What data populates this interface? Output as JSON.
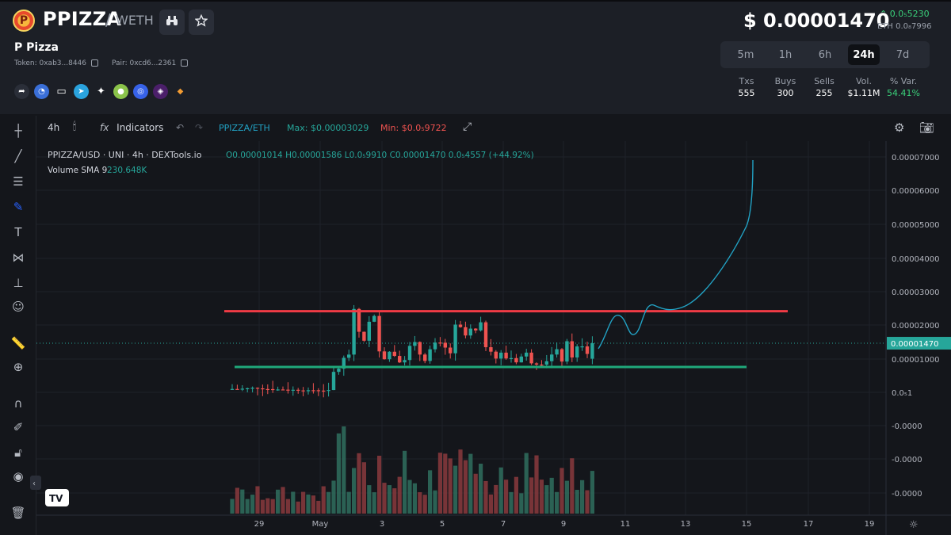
{
  "header": {
    "logo_letter": "P",
    "pair_base": "PPIZZA",
    "pair_sep": "/",
    "pair_quote": "WETH",
    "token_name": "P Pizza",
    "token_addr": "Token: 0xab3...8446",
    "pair_addr": "Pair: 0xcd6...2361",
    "price": "$ 0.00001470",
    "price_change": "0.0₅5230",
    "price_eth": "ETH 0.0₈7996",
    "timeframes": [
      "5m",
      "1h",
      "6h",
      "24h",
      "7d"
    ],
    "active_timeframe": "24h",
    "stats": {
      "txs_label": "Txs",
      "txs": "555",
      "buys_label": "Buys",
      "buys": "300",
      "sells_label": "Sells",
      "sells": "255",
      "vol_label": "Vol.",
      "vol": "$1.11M",
      "var_label": "% Var.",
      "var": "54.41%"
    },
    "social_icons": [
      "share-icon",
      "chart-icon",
      "monitor-icon",
      "telegram-icon",
      "twitter-icon",
      "coingecko-icon",
      "cmc-icon",
      "metamask-swap-icon",
      "fox-icon"
    ]
  },
  "chart_toolbar": {
    "interval": "4h",
    "indicators": "Indicators",
    "pair_label": "PPIZZA/ETH",
    "max_label": "Max: $0.00003029",
    "min_label": "Min: $0.0₅9722"
  },
  "legend": {
    "symbol": "PPIZZA/USD · UNI · 4h · DEXTools.io",
    "ohlc": "O0.00001014 H0.00001586 L0.0₅9910 C0.00001470 0.0₅4557 (+44.92%)",
    "volume_label": "Volume SMA 9",
    "volume_value": "230.648K"
  },
  "colors": {
    "up": "#26a69a",
    "down": "#ef5350",
    "resistance_line": "#ef3b45",
    "support_line": "#1fa87a",
    "drawing_curve": "#22a2c4",
    "price_tag": "#26a69a"
  },
  "chart_data": {
    "type": "candlestick",
    "x_ticks": [
      "29",
      "May",
      "3",
      "5",
      "7",
      "9",
      "11",
      "13",
      "15",
      "17",
      "19"
    ],
    "y_ticks": [
      "0.00007000",
      "0.00006000",
      "0.00005000",
      "0.00004000",
      "0.00003000",
      "0.00002000",
      "0.00001000",
      "0.0₅1",
      "-0.0000",
      "-0.0000",
      "-0.0000"
    ],
    "last_price_label": "0.00001470",
    "ylim": [
      0,
      7e-05
    ],
    "annotations": [
      {
        "kind": "horizontal",
        "color": "resistance",
        "y": 2.42e-05,
        "from": "May 1",
        "to": "May 16"
      },
      {
        "kind": "horizontal",
        "color": "support",
        "y": 7.6e-06,
        "from": "May 1",
        "to": "May 15"
      },
      {
        "kind": "projection-curve",
        "color": "curve"
      }
    ]
  }
}
